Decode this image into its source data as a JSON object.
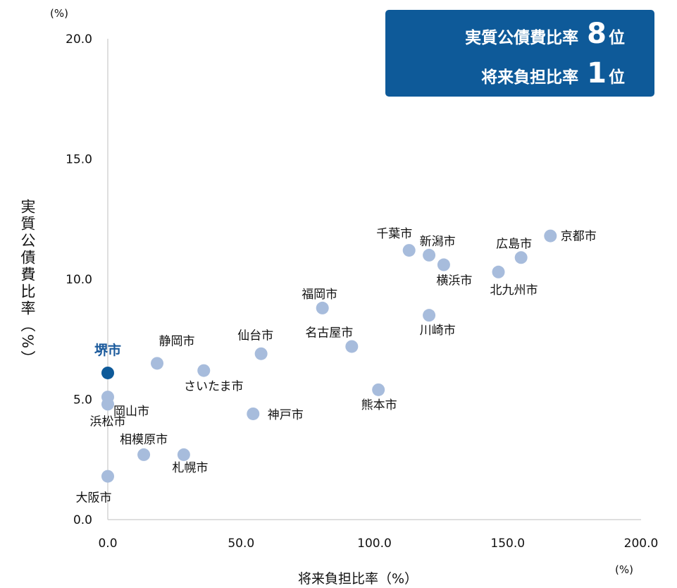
{
  "badge": {
    "line1_text": "実質公債費比率",
    "line1_rank": "8",
    "line2_text": "将来負担比率",
    "line2_rank": "1",
    "rank_suffix": "位",
    "background": "#0e5a99"
  },
  "chart_data": {
    "type": "scatter",
    "xlabel": "将来負担比率（%）",
    "ylabel": "実質公債費比率（%）",
    "x_unit": "(%)",
    "y_unit": "(%)",
    "xlim": [
      0,
      200
    ],
    "ylim": [
      0,
      20
    ],
    "x_ticks": [
      "0.0",
      "50.0",
      "100.0",
      "150.0",
      "200.0"
    ],
    "y_ticks": [
      "0.0",
      "5.0",
      "10.0",
      "15.0",
      "20.0"
    ],
    "grid": false,
    "point_color": "#a7bcdc",
    "highlight_color": "#0e5a99",
    "points": [
      {
        "label": "堺市",
        "x": 0.0,
        "y": 6.1,
        "highlight": true
      },
      {
        "label": "岡山市",
        "x": 0.0,
        "y": 5.1
      },
      {
        "label": "浜松市",
        "x": 0.0,
        "y": 4.8
      },
      {
        "label": "大阪市",
        "x": 0.0,
        "y": 1.8
      },
      {
        "label": "静岡市",
        "x": 18.5,
        "y": 6.5
      },
      {
        "label": "さいたま市",
        "x": 36.0,
        "y": 6.2
      },
      {
        "label": "相模原市",
        "x": 13.5,
        "y": 2.7
      },
      {
        "label": "札幌市",
        "x": 28.5,
        "y": 2.7
      },
      {
        "label": "仙台市",
        "x": 57.5,
        "y": 6.9
      },
      {
        "label": "神戸市",
        "x": 54.5,
        "y": 4.4
      },
      {
        "label": "福岡市",
        "x": 80.5,
        "y": 8.8
      },
      {
        "label": "名古屋市",
        "x": 91.5,
        "y": 7.2
      },
      {
        "label": "熊本市",
        "x": 101.5,
        "y": 5.4
      },
      {
        "label": "千葉市",
        "x": 113.0,
        "y": 11.2
      },
      {
        "label": "新潟市",
        "x": 120.5,
        "y": 11.0
      },
      {
        "label": "横浜市",
        "x": 126.0,
        "y": 10.6
      },
      {
        "label": "川崎市",
        "x": 120.5,
        "y": 8.5
      },
      {
        "label": "北九州市",
        "x": 146.5,
        "y": 10.3
      },
      {
        "label": "広島市",
        "x": 155.0,
        "y": 10.9
      },
      {
        "label": "京都市",
        "x": 166.0,
        "y": 11.8
      }
    ]
  }
}
